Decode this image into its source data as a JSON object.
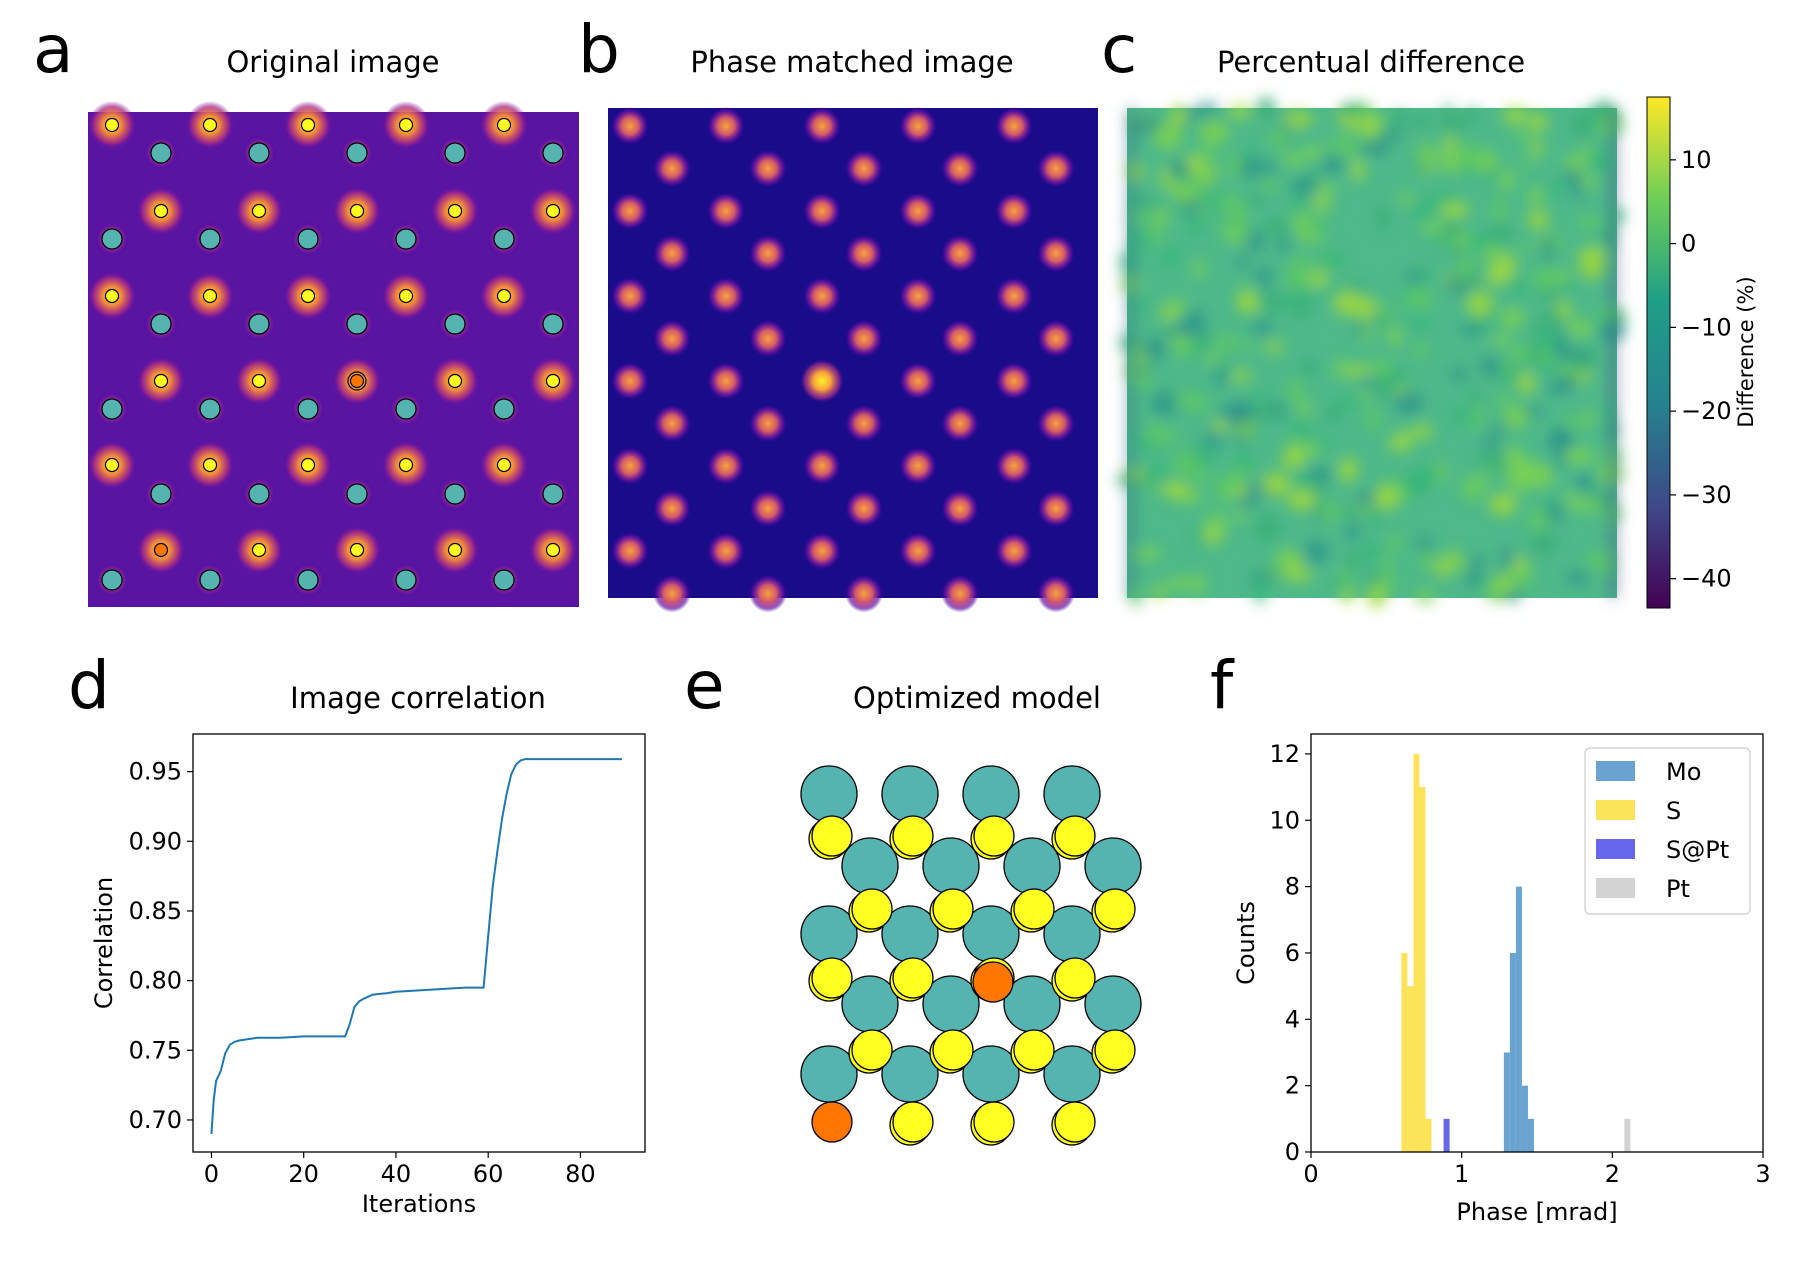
{
  "panels": {
    "a": {
      "letter": "a",
      "title": "Original image"
    },
    "b": {
      "letter": "b",
      "title": "Phase matched image"
    },
    "c": {
      "letter": "c",
      "title": "Percentual difference",
      "colorbar": {
        "label": "Difference (%)",
        "ticks": [
          "10",
          "0",
          "−10",
          "−20",
          "−30",
          "−40"
        ]
      }
    },
    "d": {
      "letter": "d",
      "title": "Image correlation"
    },
    "e": {
      "letter": "e",
      "title": "Optimized model"
    },
    "f": {
      "letter": "f",
      "title": ""
    }
  },
  "colors": {
    "mo_atom": "#56b4b0",
    "s_atom": "#ffff22",
    "dopant_atom": "#ff7700",
    "line": "#1f77b4",
    "hist_mo": "#6aa3cf",
    "hist_s": "#fde35a",
    "hist_spt": "#6666ee",
    "hist_pt": "#d3d3d3"
  },
  "chart_data": [
    {
      "type": "line",
      "title": "Image correlation",
      "xlabel": "Iterations",
      "ylabel": "Correlation",
      "xlim": [
        -4,
        94
      ],
      "ylim": [
        0.677,
        0.977
      ],
      "xticks": [
        "0",
        "20",
        "40",
        "60",
        "80"
      ],
      "yticks": [
        "0.70",
        "0.75",
        "0.80",
        "0.85",
        "0.90",
        "0.95"
      ],
      "grid": false,
      "series": [
        {
          "x": [
            0,
            0.5,
            1,
            2,
            3,
            4,
            5,
            6,
            8,
            10,
            15,
            20,
            25,
            29,
            30,
            31,
            32,
            33,
            35,
            38,
            40,
            45,
            50,
            55,
            59,
            60,
            61,
            62,
            63,
            64,
            65,
            66,
            67,
            68,
            70,
            75,
            80,
            85,
            89
          ],
          "y": [
            0.69,
            0.715,
            0.728,
            0.735,
            0.748,
            0.754,
            0.756,
            0.757,
            0.758,
            0.759,
            0.759,
            0.76,
            0.76,
            0.76,
            0.769,
            0.781,
            0.785,
            0.787,
            0.79,
            0.791,
            0.792,
            0.793,
            0.794,
            0.795,
            0.795,
            0.832,
            0.868,
            0.893,
            0.916,
            0.934,
            0.948,
            0.955,
            0.958,
            0.959,
            0.959,
            0.959,
            0.959,
            0.959,
            0.959
          ]
        }
      ]
    },
    {
      "type": "bar",
      "title": "",
      "xlabel": "Phase [mrad]",
      "ylabel": "Counts",
      "xlim": [
        0,
        3
      ],
      "ylim": [
        0,
        12.6
      ],
      "xticks": [
        "0",
        "1",
        "2",
        "3"
      ],
      "yticks": [
        "0",
        "2",
        "4",
        "6",
        "8",
        "10",
        "12"
      ],
      "legend": "top-right",
      "bin_width": 0.04,
      "series": [
        {
          "name": "Mo",
          "bins": [
            [
              1.28,
              3
            ],
            [
              1.32,
              6
            ],
            [
              1.36,
              8
            ],
            [
              1.4,
              2
            ],
            [
              1.44,
              1
            ]
          ]
        },
        {
          "name": "S",
          "bins": [
            [
              0.6,
              6
            ],
            [
              0.64,
              5
            ],
            [
              0.68,
              12
            ],
            [
              0.72,
              11
            ],
            [
              0.76,
              1
            ]
          ]
        },
        {
          "name": "S@Pt",
          "bins": [
            [
              0.88,
              1
            ]
          ]
        },
        {
          "name": "Pt",
          "bins": [
            [
              2.08,
              1
            ]
          ]
        }
      ]
    }
  ]
}
